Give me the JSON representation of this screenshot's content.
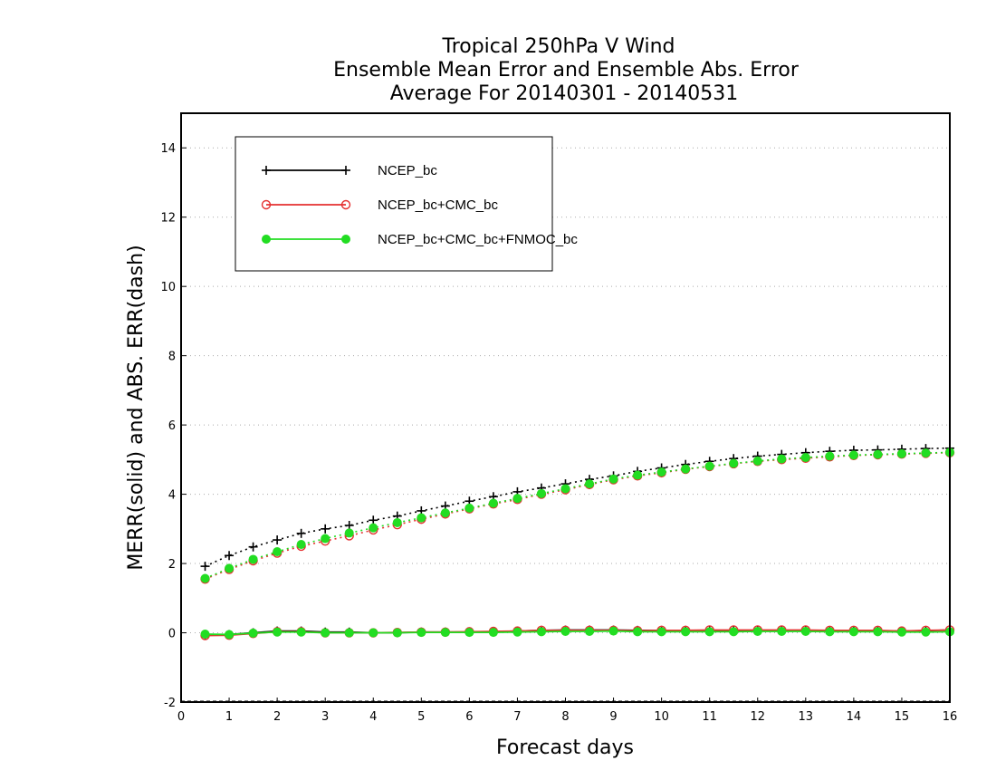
{
  "chart_data": {
    "type": "line",
    "title": [
      "Tropical 250hPa V Wind",
      "Ensemble Mean Error and Ensemble Abs. Error",
      "Average For 20140301 - 20140531"
    ],
    "xlabel": "Forecast days",
    "ylabel": "MERR(solid) and ABS. ERR(dash)",
    "xlim": [
      0,
      16
    ],
    "ylim": [
      -2,
      15
    ],
    "xticks": [
      "0",
      "1",
      "2",
      "3",
      "4",
      "5",
      "6",
      "7",
      "8",
      "9",
      "10",
      "11",
      "12",
      "13",
      "14",
      "15",
      "16"
    ],
    "yticks": [
      "-2",
      "0",
      "2",
      "4",
      "6",
      "8",
      "10",
      "12",
      "14"
    ],
    "grid": "dotted-horizontal",
    "legend_position": "top-left",
    "x": [
      0.5,
      1,
      1.5,
      2,
      2.5,
      3,
      3.5,
      4,
      4.5,
      5,
      5.5,
      6,
      6.5,
      7,
      7.5,
      8,
      8.5,
      9,
      9.5,
      10,
      10.5,
      11,
      11.5,
      12,
      12.5,
      13,
      13.5,
      14,
      14.5,
      15,
      15.5,
      16
    ],
    "series": [
      {
        "name": "NCEP_bc",
        "color": "#000000",
        "marker": "plus",
        "merr": [
          -0.05,
          -0.05,
          0.0,
          0.05,
          0.05,
          0.02,
          0.02,
          0.0,
          0.0,
          0.02,
          0.02,
          0.02,
          0.03,
          0.05,
          0.07,
          0.08,
          0.08,
          0.08,
          0.07,
          0.07,
          0.07,
          0.07,
          0.07,
          0.07,
          0.07,
          0.07,
          0.06,
          0.06,
          0.05,
          0.05,
          0.06,
          0.08
        ],
        "abs_err": [
          1.92,
          2.23,
          2.48,
          2.68,
          2.87,
          3.0,
          3.1,
          3.25,
          3.37,
          3.52,
          3.66,
          3.8,
          3.93,
          4.07,
          4.18,
          4.3,
          4.43,
          4.53,
          4.66,
          4.76,
          4.86,
          4.95,
          5.03,
          5.1,
          5.15,
          5.2,
          5.24,
          5.27,
          5.28,
          5.3,
          5.32,
          5.33
        ]
      },
      {
        "name": "NCEP_bc+CMC_bc",
        "color": "#e53030",
        "marker": "open-circle",
        "merr": [
          -0.08,
          -0.07,
          -0.02,
          0.03,
          0.03,
          0.0,
          0.0,
          0.0,
          0.01,
          0.02,
          0.02,
          0.03,
          0.04,
          0.05,
          0.07,
          0.07,
          0.07,
          0.07,
          0.06,
          0.07,
          0.07,
          0.08,
          0.08,
          0.08,
          0.08,
          0.08,
          0.07,
          0.07,
          0.07,
          0.05,
          0.07,
          0.08
        ],
        "abs_err": [
          1.55,
          1.83,
          2.08,
          2.3,
          2.5,
          2.65,
          2.8,
          2.97,
          3.12,
          3.28,
          3.43,
          3.58,
          3.72,
          3.85,
          4.0,
          4.13,
          4.28,
          4.42,
          4.53,
          4.62,
          4.72,
          4.8,
          4.88,
          4.95,
          5.0,
          5.04,
          5.08,
          5.12,
          5.14,
          5.16,
          5.18,
          5.2
        ]
      },
      {
        "name": "NCEP_bc+CMC_bc+FNMOC_bc",
        "color": "#22dd22",
        "marker": "filled-circle",
        "merr": [
          -0.04,
          -0.05,
          -0.01,
          0.02,
          0.02,
          0.0,
          0.0,
          0.0,
          0.0,
          0.01,
          0.01,
          0.01,
          0.01,
          0.02,
          0.03,
          0.04,
          0.04,
          0.05,
          0.03,
          0.03,
          0.03,
          0.03,
          0.03,
          0.04,
          0.04,
          0.04,
          0.03,
          0.03,
          0.03,
          0.02,
          0.02,
          0.03
        ],
        "abs_err": [
          1.57,
          1.86,
          2.12,
          2.34,
          2.55,
          2.72,
          2.88,
          3.03,
          3.18,
          3.32,
          3.46,
          3.6,
          3.74,
          3.88,
          4.02,
          4.16,
          4.3,
          4.44,
          4.55,
          4.64,
          4.73,
          4.81,
          4.89,
          4.96,
          5.02,
          5.06,
          5.1,
          5.13,
          5.15,
          5.17,
          5.19,
          5.21
        ]
      }
    ]
  }
}
